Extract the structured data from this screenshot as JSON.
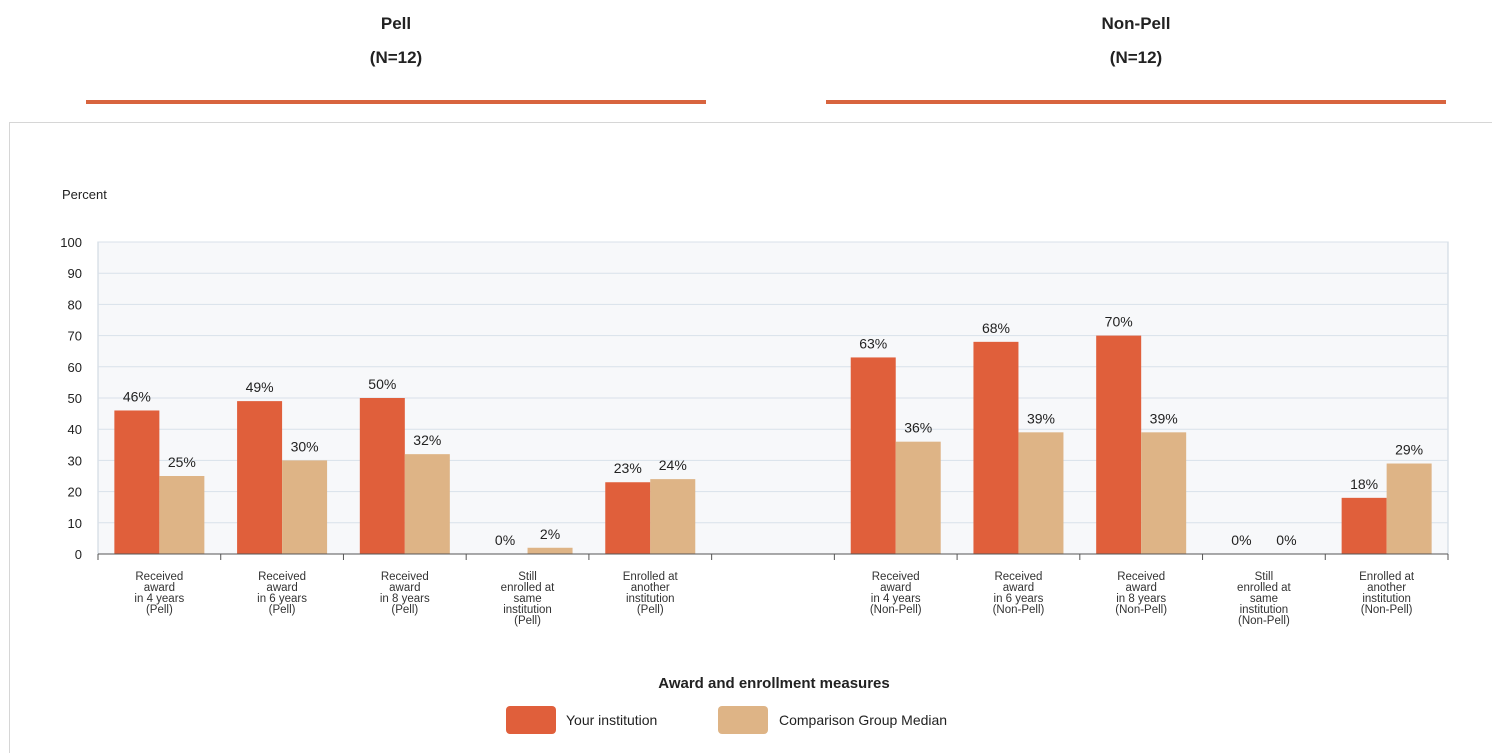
{
  "header": {
    "pell": {
      "name": "Pell",
      "n": "(N=12)"
    },
    "nonpell": {
      "name": "Non-Pell",
      "n": "(N=12)"
    }
  },
  "colors": {
    "institution": "#e05f3b",
    "comparison": "#deb486",
    "grid": "#d9e1ea",
    "rule": "#d8643e"
  },
  "chart_data": {
    "type": "bar",
    "ylabel": "Percent",
    "xlabel": "Award and enrollment measures",
    "ylim": [
      0,
      100
    ],
    "yticks": [
      0,
      10,
      20,
      30,
      40,
      50,
      60,
      70,
      80,
      90,
      100
    ],
    "grid": true,
    "legend_position": "bottom",
    "categories": [
      [
        "Received",
        "award",
        "in 4 years",
        "(Pell)"
      ],
      [
        "Received",
        "award",
        "in 6 years",
        "(Pell)"
      ],
      [
        "Received",
        "award",
        "in 8 years",
        "(Pell)"
      ],
      [
        "Still",
        "enrolled at",
        "same",
        "institution",
        "(Pell)"
      ],
      [
        "Enrolled at",
        "another",
        "institution",
        "(Pell)"
      ],
      [],
      [
        "Received",
        "award",
        "in 4 years",
        "(Non-Pell)"
      ],
      [
        "Received",
        "award",
        "in 6 years",
        "(Non-Pell)"
      ],
      [
        "Received",
        "award",
        "in 8 years",
        "(Non-Pell)"
      ],
      [
        "Still",
        "enrolled at",
        "same",
        "institution",
        "(Non-Pell)"
      ],
      [
        "Enrolled at",
        "another",
        "institution",
        "(Non-Pell)"
      ]
    ],
    "series": [
      {
        "name": "Your institution",
        "values": [
          46,
          49,
          50,
          0,
          23,
          null,
          63,
          68,
          70,
          0,
          18
        ],
        "labels": [
          "46%",
          "49%",
          "50%",
          "0%",
          "23%",
          "",
          "63%",
          "68%",
          "70%",
          "0%",
          "18%"
        ]
      },
      {
        "name": "Comparison Group Median",
        "values": [
          25,
          30,
          32,
          2,
          24,
          null,
          36,
          39,
          39,
          0,
          29
        ],
        "labels": [
          "25%",
          "30%",
          "32%",
          "2%",
          "24%",
          "",
          "36%",
          "39%",
          "39%",
          "0%",
          "29%"
        ]
      }
    ]
  }
}
